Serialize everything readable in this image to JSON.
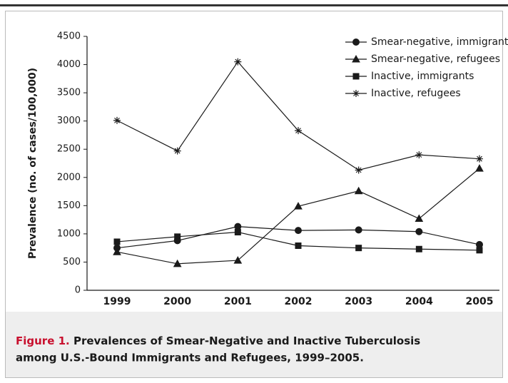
{
  "chart_data": {
    "type": "line",
    "y_label": "Prevalence (no. of cases/100,000)",
    "categories": [
      "1999",
      "2000",
      "2001",
      "2002",
      "2003",
      "2004",
      "2005"
    ],
    "series": [
      {
        "name": "Smear-negative, immigrants",
        "color": "#1a1a1a",
        "marker": "circle",
        "values": [
          750,
          880,
          1130,
          1060,
          1070,
          1040,
          810
        ]
      },
      {
        "name": "Smear-negative, refugees",
        "color": "#1a1a1a",
        "marker": "triangle",
        "values": [
          680,
          470,
          530,
          1490,
          1760,
          1270,
          2160
        ]
      },
      {
        "name": "Inactive, immigrants",
        "color": "#1a1a1a",
        "marker": "square",
        "values": [
          860,
          950,
          1030,
          790,
          750,
          730,
          710
        ]
      },
      {
        "name": "Inactive, refugees",
        "color": "#1a1a1a",
        "marker": "asterisk",
        "values": [
          3010,
          2470,
          4050,
          2830,
          2130,
          2400,
          2330
        ]
      }
    ],
    "ylim": [
      0,
      4500
    ],
    "yticks": [
      0,
      500,
      1000,
      1500,
      2000,
      2500,
      3000,
      3500,
      4000,
      4500
    ],
    "legend": "top-right",
    "caption_label": "Figure 1.",
    "caption_lines": [
      "Prevalences of Smear-Negative and Inactive Tuberculosis",
      "among U.S.-Bound Immigrants and Refugees, 1999–2005."
    ]
  }
}
